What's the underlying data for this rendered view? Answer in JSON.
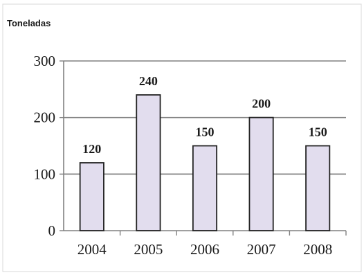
{
  "chart_data": {
    "type": "bar",
    "ylabel": "Toneladas",
    "categories": [
      "2004",
      "2005",
      "2006",
      "2007",
      "2008"
    ],
    "values": [
      120,
      240,
      150,
      200,
      150
    ],
    "data_labels": [
      "120",
      "240",
      "150",
      "200",
      "150"
    ],
    "yticks": [
      "0",
      "100",
      "200",
      "300"
    ],
    "ylim": [
      0,
      300
    ],
    "grid": true,
    "legend": "none",
    "colors": {
      "bar_fill": "#e2ddee",
      "bar_stroke": "#222222",
      "grid": "#808080",
      "axis": "#808080",
      "text": "#1a1a1a",
      "frame": "#d8d8d8"
    }
  }
}
